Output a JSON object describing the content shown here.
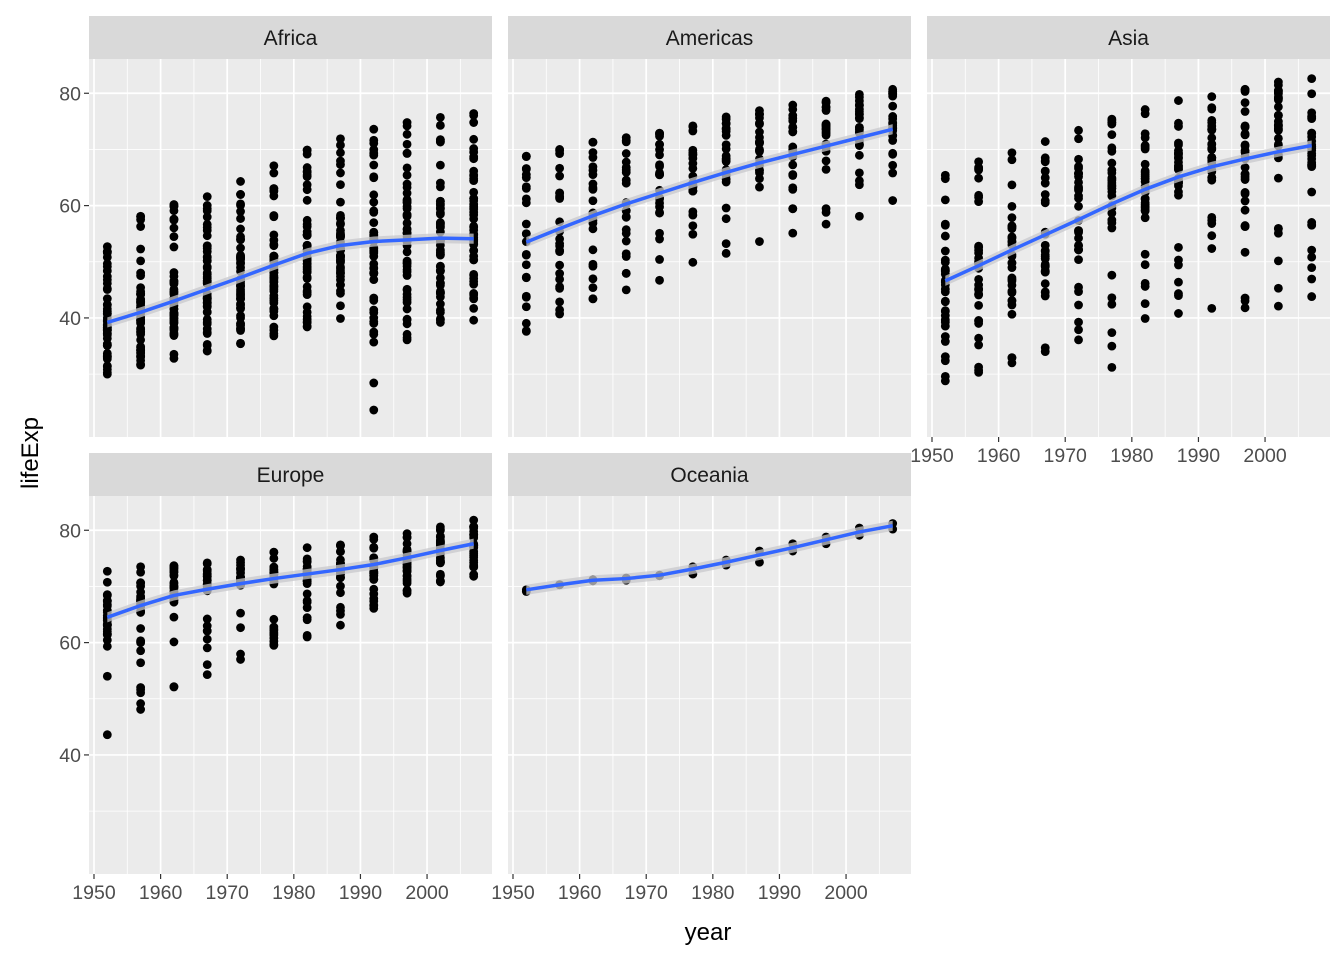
{
  "chart_data": {
    "type": "scatter",
    "xlabel": "year",
    "ylabel": "lifeExp",
    "x_ticks": [
      1950,
      1960,
      1970,
      1980,
      1990,
      2000
    ],
    "y_ticks": [
      40,
      60,
      80
    ],
    "xlim": [
      1949.25,
      2009.75
    ],
    "ylim": [
      18.8,
      86.1
    ],
    "grid": true,
    "colors": {
      "panel_bg": "#ebebeb",
      "strip_bg": "#d9d9d9",
      "grid": "#ffffff",
      "point": "#000000",
      "smooth_line": "#3366ff",
      "ribbon": "#c8c8cc"
    },
    "years": [
      1952,
      1957,
      1962,
      1967,
      1972,
      1977,
      1982,
      1987,
      1992,
      1997,
      2002,
      2007
    ],
    "facets": [
      {
        "name": "Africa",
        "smooth": [
          39.2,
          41.0,
          43.0,
          45.1,
          47.2,
          49.4,
          51.5,
          52.9,
          53.6,
          53.9,
          54.2,
          54.1
        ],
        "points_per_year": 52,
        "min": [
          30.0,
          31.6,
          32.8,
          34.1,
          35.4,
          36.8,
          38.4,
          39.9,
          23.6,
          36.1,
          39.2,
          39.6
        ],
        "max": [
          52.7,
          58.1,
          60.2,
          61.6,
          64.3,
          67.1,
          69.9,
          71.9,
          73.6,
          74.8,
          75.7,
          76.4
        ],
        "q1": [
          35.8,
          37.9,
          39.9,
          41.8,
          43.7,
          45.3,
          46.9,
          47.9,
          47.6,
          46.9,
          45.6,
          47.0
        ],
        "q3": [
          42.9,
          44.9,
          47.1,
          49.5,
          51.9,
          54.3,
          56.4,
          58.1,
          59.8,
          60.3,
          61.0,
          62.7
        ]
      },
      {
        "name": "Americas",
        "smooth": [
          53.5,
          55.9,
          58.2,
          60.3,
          62.2,
          64.1,
          65.9,
          67.6,
          69.1,
          70.6,
          72.1,
          73.6
        ],
        "points_per_year": 25,
        "min": [
          37.6,
          40.7,
          43.4,
          45.0,
          46.7,
          49.9,
          51.5,
          53.6,
          55.1,
          56.7,
          58.1,
          60.9
        ],
        "max": [
          68.8,
          70.0,
          71.3,
          72.1,
          72.9,
          74.2,
          75.8,
          76.9,
          77.9,
          78.6,
          79.8,
          80.7
        ],
        "q1": [
          45.0,
          48.5,
          52.1,
          55.6,
          58.5,
          61.6,
          64.1,
          66.0,
          67.5,
          69.0,
          70.5,
          71.8
        ],
        "q3": [
          61.8,
          64.5,
          66.8,
          67.2,
          69.3,
          70.5,
          71.9,
          73.4,
          74.2,
          75.2,
          75.7,
          76.4
        ]
      },
      {
        "name": "Asia",
        "smooth": [
          46.6,
          49.3,
          52.1,
          54.8,
          57.5,
          60.3,
          62.9,
          65.1,
          66.9,
          68.3,
          69.6,
          70.7
        ],
        "points_per_year": 33,
        "min": [
          28.8,
          30.3,
          32.0,
          34.0,
          36.1,
          31.2,
          39.9,
          40.8,
          41.7,
          41.8,
          42.1,
          43.8
        ],
        "max": [
          65.4,
          67.8,
          69.4,
          71.4,
          73.4,
          75.4,
          77.1,
          78.7,
          79.4,
          80.7,
          82.0,
          82.6
        ],
        "q1": [
          39.2,
          41.7,
          44.1,
          47.1,
          51.0,
          55.5,
          57.8,
          61.6,
          62.9,
          63.4,
          64.6,
          66.3
        ],
        "q3": [
          51.0,
          54.8,
          57.6,
          61.2,
          64.9,
          66.4,
          68.9,
          71.2,
          72.1,
          74.3,
          75.4,
          76.5
        ]
      },
      {
        "name": "Europe",
        "smooth": [
          64.5,
          66.6,
          68.4,
          69.5,
          70.5,
          71.4,
          72.2,
          73.0,
          73.9,
          75.1,
          76.4,
          77.6
        ],
        "points_per_year": 30,
        "min": [
          43.6,
          48.1,
          52.1,
          54.3,
          57.0,
          59.5,
          61.0,
          63.1,
          66.1,
          68.8,
          70.8,
          71.8
        ],
        "max": [
          72.7,
          73.5,
          73.7,
          74.2,
          74.7,
          76.1,
          76.9,
          77.4,
          78.8,
          79.4,
          80.6,
          81.8
        ],
        "q1": [
          61.1,
          65.0,
          67.5,
          69.5,
          70.2,
          70.3,
          70.8,
          71.5,
          71.8,
          72.5,
          74.0,
          75.0
        ],
        "q3": [
          68.6,
          69.3,
          70.1,
          70.8,
          71.8,
          72.7,
          73.6,
          74.2,
          75.7,
          76.7,
          77.9,
          79.2
        ]
      },
      {
        "name": "Oceania",
        "smooth": [
          69.4,
          70.3,
          71.1,
          71.4,
          72.0,
          73.1,
          74.3,
          75.6,
          76.9,
          78.3,
          79.7,
          80.8
        ],
        "points_per_year": 2,
        "min": [
          69.1,
          70.3,
          71.0,
          71.1,
          71.9,
          72.2,
          73.8,
          74.3,
          76.3,
          77.6,
          79.1,
          80.2
        ],
        "max": [
          69.4,
          70.3,
          71.2,
          71.5,
          72.0,
          73.5,
          74.7,
          76.3,
          77.6,
          78.8,
          80.4,
          81.2
        ],
        "q1": [
          69.1,
          70.3,
          71.0,
          71.1,
          71.9,
          72.2,
          73.8,
          74.3,
          76.3,
          77.6,
          79.1,
          80.2
        ],
        "q3": [
          69.4,
          70.3,
          71.2,
          71.5,
          72.0,
          73.5,
          74.7,
          76.3,
          77.6,
          78.8,
          80.4,
          81.2
        ]
      }
    ]
  }
}
